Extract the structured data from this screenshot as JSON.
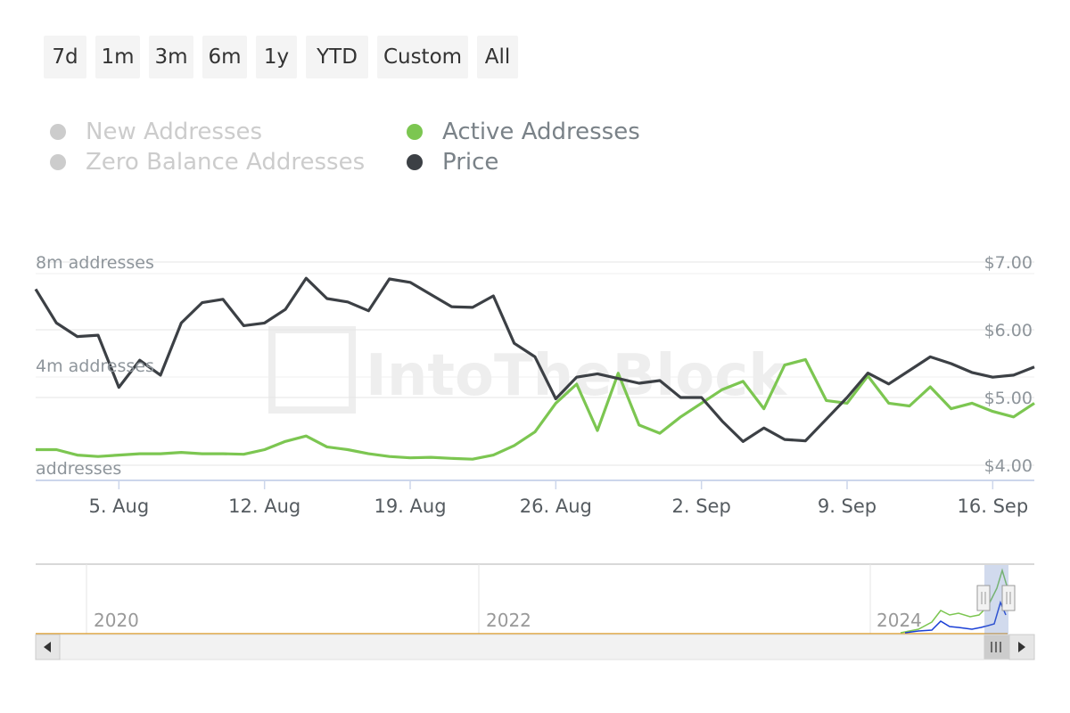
{
  "range_selector": {
    "buttons": [
      "7d",
      "1m",
      "3m",
      "6m",
      "1y",
      "YTD",
      "Custom",
      "All"
    ]
  },
  "legend": [
    {
      "label": "New Addresses",
      "color": "#cccccc",
      "visible": false
    },
    {
      "label": "Zero Balance Addresses",
      "color": "#cccccc",
      "visible": false
    },
    {
      "label": "Active Addresses",
      "color": "#7cc651",
      "visible": true
    },
    {
      "label": "Price",
      "color": "#3c4045",
      "visible": true
    }
  ],
  "watermark": "IntoTheBlock",
  "chart_data": {
    "type": "line",
    "x_dates": [
      "2024-08-01",
      "2024-08-02",
      "2024-08-03",
      "2024-08-04",
      "2024-08-05",
      "2024-08-06",
      "2024-08-07",
      "2024-08-08",
      "2024-08-09",
      "2024-08-10",
      "2024-08-11",
      "2024-08-12",
      "2024-08-13",
      "2024-08-14",
      "2024-08-15",
      "2024-08-16",
      "2024-08-17",
      "2024-08-18",
      "2024-08-19",
      "2024-08-20",
      "2024-08-21",
      "2024-08-22",
      "2024-08-23",
      "2024-08-24",
      "2024-08-25",
      "2024-08-26",
      "2024-08-27",
      "2024-08-28",
      "2024-08-29",
      "2024-08-30",
      "2024-08-31",
      "2024-09-01",
      "2024-09-02",
      "2024-09-03",
      "2024-09-04",
      "2024-09-05",
      "2024-09-06",
      "2024-09-07",
      "2024-09-08",
      "2024-09-09",
      "2024-09-10",
      "2024-09-11",
      "2024-09-12",
      "2024-09-13",
      "2024-09-14",
      "2024-09-15",
      "2024-09-16",
      "2024-09-17",
      "2024-09-18"
    ],
    "x_ticks": [
      "5. Aug",
      "12. Aug",
      "19. Aug",
      "26. Aug",
      "2. Sep",
      "9. Sep",
      "16. Sep"
    ],
    "left_axis": {
      "ticks": [
        "8m addresses",
        "4m addresses",
        "addresses"
      ],
      "values": [
        8000000,
        4000000,
        0
      ],
      "ylim": [
        0,
        8000000
      ]
    },
    "right_axis": {
      "ticks": [
        "$7.00",
        "$6.00",
        "$5.00",
        "$4.00"
      ],
      "values": [
        7,
        6,
        5,
        4
      ],
      "ylim": [
        3.8,
        7.1
      ]
    },
    "grid": true,
    "series": [
      {
        "name": "Active Addresses",
        "axis": "left",
        "color": "#7cc651",
        "values": [
          800000,
          800000,
          600000,
          550000,
          600000,
          650000,
          650000,
          700000,
          650000,
          650000,
          630000,
          800000,
          1100000,
          1300000,
          900000,
          800000,
          650000,
          550000,
          500000,
          520000,
          480000,
          450000,
          600000,
          950000,
          1450000,
          2500000,
          3200000,
          1500000,
          3600000,
          1700000,
          1400000,
          2000000,
          2500000,
          3000000,
          3300000,
          2300000,
          3900000,
          4100000,
          2600000,
          2500000,
          3500000,
          2500000,
          2400000,
          3100000,
          2300000,
          2500000,
          2200000,
          2000000,
          2500000
        ]
      },
      {
        "name": "Price",
        "axis": "right",
        "color": "#3c4045",
        "values": [
          6.6,
          6.1,
          5.9,
          5.92,
          5.15,
          5.55,
          5.33,
          6.1,
          6.4,
          6.45,
          6.06,
          6.1,
          6.3,
          6.76,
          6.46,
          6.41,
          6.28,
          6.75,
          6.7,
          6.52,
          6.34,
          6.33,
          6.5,
          5.8,
          5.6,
          4.98,
          5.3,
          5.35,
          5.28,
          5.21,
          5.25,
          5.0,
          5.0,
          4.65,
          4.35,
          4.55,
          4.38,
          4.36,
          4.68,
          5.0,
          5.36,
          5.2,
          5.4,
          5.6,
          5.5,
          5.37,
          5.3,
          5.33,
          5.45
        ]
      }
    ]
  },
  "navigator": {
    "year_labels": [
      "2020",
      "2022",
      "2024"
    ]
  }
}
